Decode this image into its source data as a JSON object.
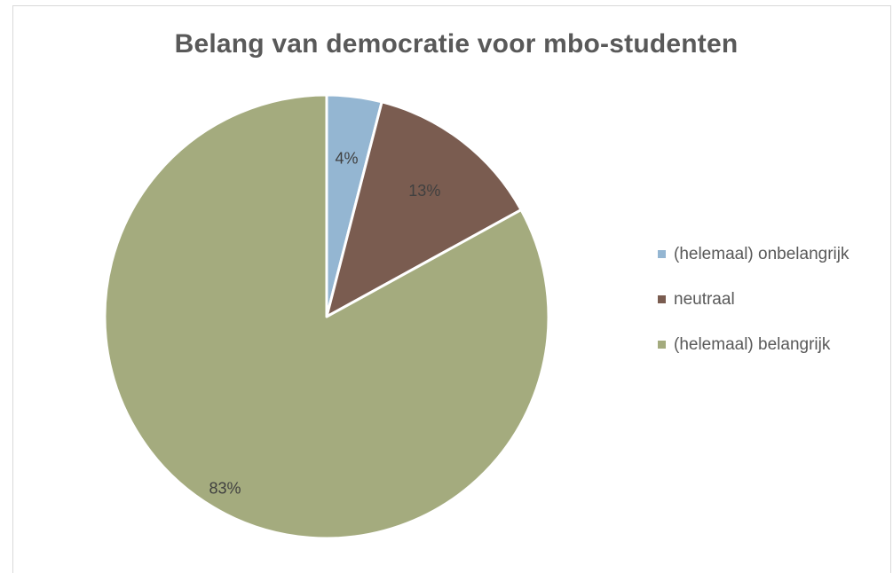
{
  "chart_data": {
    "type": "pie",
    "title": "Belang van democratie voor mbo-studenten",
    "categories": [
      "(helemaal) onbelangrijk",
      "neutraal",
      "(helemaal) belangrijk"
    ],
    "values": [
      4,
      13,
      83
    ],
    "data_labels": [
      "4%",
      "13%",
      "83%"
    ],
    "colors": [
      "#94b6d2",
      "#7a5c50",
      "#a4ab7e"
    ],
    "start_angle_deg": 0,
    "direction": "clockwise",
    "legend_position": "right"
  }
}
